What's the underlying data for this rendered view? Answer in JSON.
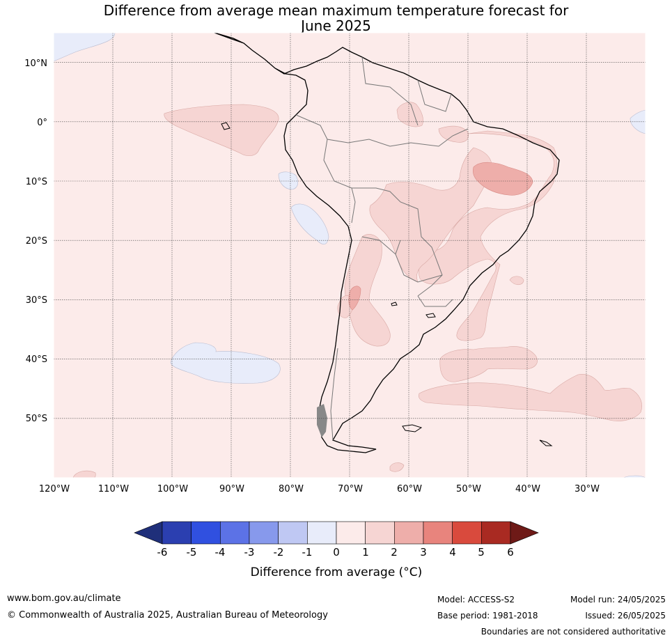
{
  "title": {
    "line1": "Difference from average mean maximum temperature forecast for",
    "line2": "June 2025"
  },
  "map": {
    "lat_labels": [
      "10°N",
      "0°",
      "10°S",
      "20°S",
      "30°S",
      "40°S",
      "50°S"
    ],
    "lon_labels": [
      "120°W",
      "110°W",
      "100°W",
      "90°W",
      "80°W",
      "70°W",
      "60°W",
      "50°W",
      "40°W",
      "30°W"
    ],
    "grid": true,
    "lon_range": [
      -120,
      -20
    ],
    "lat_range": [
      -60,
      15
    ]
  },
  "colorbar": {
    "ticks": [
      "-6",
      "-5",
      "-4",
      "-3",
      "-2",
      "-1",
      "0",
      "1",
      "2",
      "3",
      "4",
      "5",
      "6"
    ],
    "label": "Difference from average (°C)",
    "colors": [
      "#1f2f7a",
      "#2b3fb0",
      "#3050e0",
      "#5c72e6",
      "#8799ec",
      "#bfc8f3",
      "#e8ecfa",
      "#fcebea",
      "#f6d5d3",
      "#eeaeaa",
      "#e8847d",
      "#d94a3d",
      "#a92a22",
      "#6e1a17"
    ]
  },
  "footer": {
    "url": "www.bom.gov.au/climate",
    "copyright": "© Commonwealth of Australia 2025, Australian Bureau of Meteorology",
    "model": "Model: ACCESS-S2",
    "base_period": "Base period: 1981-2018",
    "model_run": "Model run: 24/05/2025",
    "issued": "Issued: 26/05/2025",
    "disclaimer": "Boundaries are not considered authoritative"
  }
}
